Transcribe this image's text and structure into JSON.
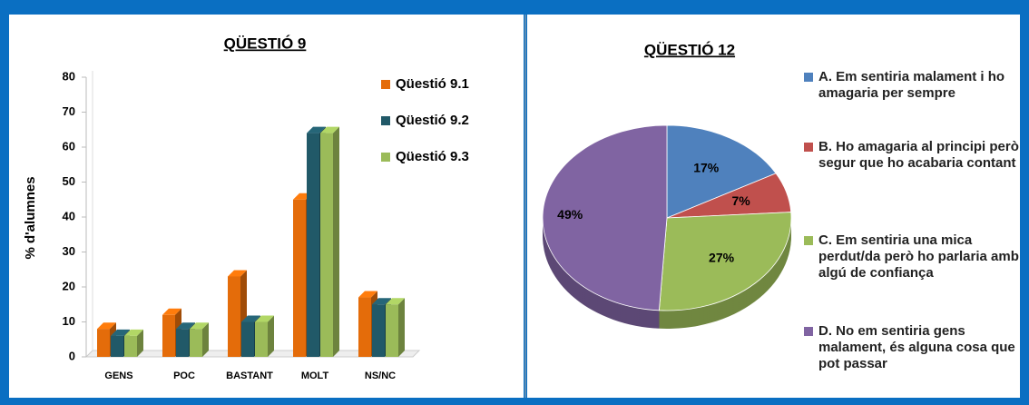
{
  "chart_data": [
    {
      "type": "bar",
      "title": "QÜESTIÓ 9",
      "y_label": "% d'alumnes",
      "categories": [
        "GENS",
        "POC",
        "BASTANT",
        "MOLT",
        "NS/NC"
      ],
      "series": [
        {
          "name": "Qüestió 9.1",
          "color": "#e46c0a",
          "values": [
            8,
            12,
            23,
            45,
            17
          ]
        },
        {
          "name": "Qüestió 9.2",
          "color": "#215968",
          "values": [
            6,
            8,
            10,
            64,
            15
          ]
        },
        {
          "name": "Qüestió 9.3",
          "color": "#9bbb59",
          "values": [
            6,
            8,
            10,
            64,
            15
          ]
        }
      ],
      "ylim": [
        0,
        80
      ],
      "yticks": [
        0,
        10,
        20,
        30,
        40,
        50,
        60,
        70,
        80
      ],
      "legend": "right"
    },
    {
      "type": "pie",
      "title": "QÜESTIÓ 12",
      "categories": [
        "A. Em sentiria malament i ho amagaria per sempre",
        "B. Ho amagaria al principi però segur que ho acabaria contant",
        "C. Em sentiria una mica perdut/da però ho parlaria amb algú de confiança",
        "D. No em sentiria gens malament, és alguna cosa que pot passar"
      ],
      "values": [
        17,
        7,
        27,
        49
      ],
      "value_labels": [
        "17%",
        "7%",
        "27%",
        "49%"
      ],
      "colors": [
        "#4f81bd",
        "#c0504d",
        "#9bbb59",
        "#8064a2"
      ],
      "legend": "right"
    }
  ]
}
